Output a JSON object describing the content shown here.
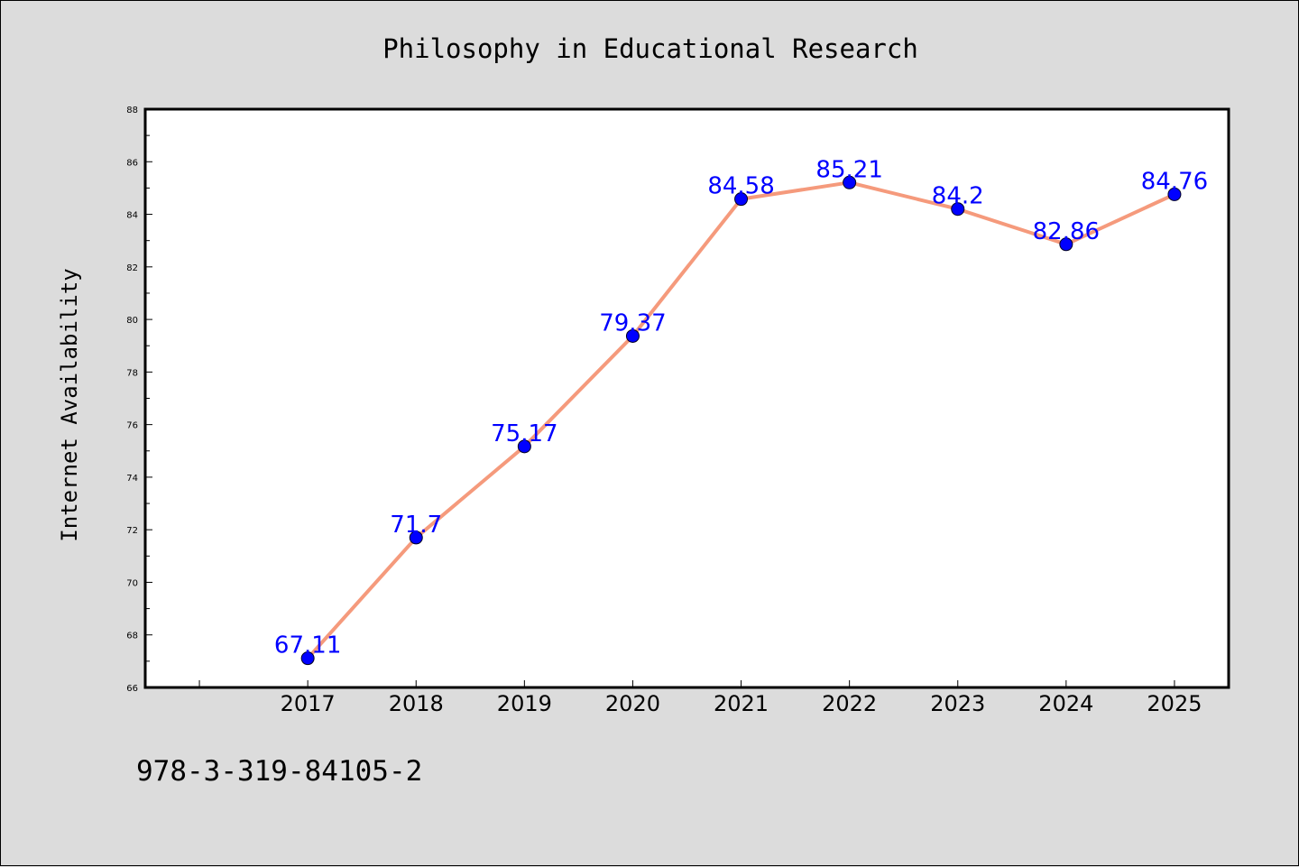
{
  "colors": {
    "background": "#dcdcdc",
    "plot_area": "#ffffff",
    "line": "#f59a7c",
    "marker": "#0000ff",
    "data_label": "#0000ff"
  },
  "footer": {
    "isbn": "978-3-319-84105-2"
  },
  "chart_data": {
    "type": "line",
    "title": "Philosophy in Educational Research",
    "xlabel": "",
    "ylabel": "Internet Availability",
    "categories": [
      "2017",
      "2018",
      "2019",
      "2020",
      "2021",
      "2022",
      "2023",
      "2024",
      "2025"
    ],
    "series": [
      {
        "values": [
          67.11,
          71.7,
          75.17,
          79.37,
          84.58,
          85.21,
          84.2,
          82.86,
          84.76
        ]
      }
    ],
    "data_labels": [
      "67.11",
      "71.7",
      "75.17",
      "79.37",
      "84.58",
      "85.21",
      "84.2",
      "82.86",
      "84.76"
    ],
    "ylim": [
      66,
      88
    ],
    "yticks": [
      "66",
      "68",
      "70",
      "72",
      "74",
      "76",
      "78",
      "80",
      "82",
      "84",
      "86",
      "88"
    ],
    "xlim": [
      2015.5,
      2025.5
    ],
    "grid": false,
    "legend": "none",
    "markers": "circle"
  }
}
